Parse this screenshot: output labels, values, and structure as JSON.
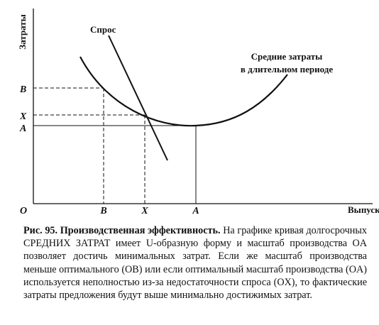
{
  "figure": {
    "y_axis_label": "Затраты",
    "x_axis_label": "Выпуск",
    "origin": "O",
    "y_labels": [
      "B",
      "X",
      "A"
    ],
    "x_labels": [
      "B",
      "X",
      "A"
    ],
    "demand_label": "Спрос",
    "cost_curve_label": [
      "Средние затраты",
      "в длительном периоде"
    ]
  },
  "caption": {
    "label": "Рис. 95. Производственная эффективность.",
    "text": "На графике кривая долгосрочных СРЕДНИХ ЗАТРАТ имеет U-образную форму и масштаб производства OA позволяет достичь минимальных затрат. Если же масштаб производства меньше оптимального (OB) или если оптимальный масштаб производства (OA) используется неполностью из-за недостаточности спроса (OX), то фактические затраты предложения будут выше минимально достижимых затрат."
  }
}
